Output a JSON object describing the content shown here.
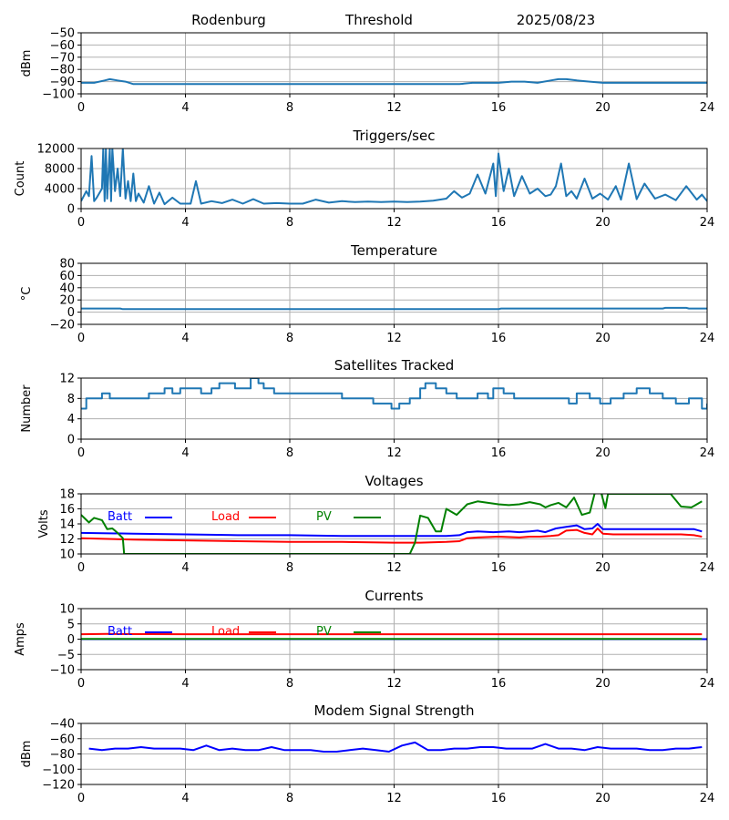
{
  "header": {
    "station": "Rodenburg",
    "mode": "Threshold",
    "date": "2025/08/23"
  },
  "chart_data": [
    {
      "type": "line",
      "title": "",
      "ylabel": "dBm",
      "xlim": [
        0,
        24
      ],
      "ylim": [
        -100,
        -50
      ],
      "x_ticks": [
        0,
        4,
        8,
        12,
        16,
        20,
        24
      ],
      "y_ticks": [
        -100,
        -90,
        -80,
        -70,
        -60,
        -50
      ],
      "series": [
        {
          "color": "#1f77b4",
          "x": [
            0,
            0.5,
            0.9,
            1.1,
            1.4,
            1.7,
            2,
            3,
            5,
            7,
            9,
            11,
            13,
            14.5,
            15,
            15.5,
            16,
            16.5,
            17,
            17.5,
            18,
            18.3,
            18.6,
            19,
            19.5,
            20,
            20.5,
            21,
            22,
            23,
            24
          ],
          "y": [
            -91,
            -91,
            -89,
            -88,
            -89,
            -90,
            -92,
            -92,
            -92,
            -92,
            -92,
            -92,
            -92,
            -92,
            -91,
            -91,
            -91,
            -90,
            -90,
            -91,
            -89,
            -88,
            -88,
            -89,
            -90,
            -91,
            -91,
            -91,
            -91,
            -91,
            -91
          ]
        }
      ]
    },
    {
      "type": "line",
      "title": "Triggers/sec",
      "ylabel": "Count",
      "xlim": [
        0,
        24
      ],
      "ylim": [
        0,
        12000
      ],
      "x_ticks": [
        0,
        4,
        8,
        12,
        16,
        20,
        24
      ],
      "y_ticks": [
        0,
        4000,
        8000,
        12000
      ],
      "series": [
        {
          "color": "#1f77b4",
          "x": [
            0,
            0.2,
            0.3,
            0.4,
            0.5,
            0.6,
            0.8,
            0.85,
            0.9,
            0.95,
            1.0,
            1.1,
            1.15,
            1.2,
            1.3,
            1.4,
            1.5,
            1.6,
            1.7,
            1.8,
            1.9,
            2.0,
            2.1,
            2.2,
            2.4,
            2.6,
            2.8,
            3.0,
            3.2,
            3.5,
            3.8,
            4.2,
            4.4,
            4.6,
            5.0,
            5.4,
            5.8,
            6.2,
            6.6,
            7.0,
            7.5,
            8.0,
            8.5,
            9.0,
            9.5,
            10.0,
            10.5,
            11.0,
            11.5,
            12.0,
            12.5,
            13.0,
            13.5,
            14.0,
            14.3,
            14.6,
            14.9,
            15.2,
            15.5,
            15.8,
            15.9,
            16.0,
            16.2,
            16.4,
            16.6,
            16.9,
            17.2,
            17.5,
            17.8,
            18.0,
            18.2,
            18.4,
            18.6,
            18.8,
            19.0,
            19.3,
            19.6,
            19.9,
            20.2,
            20.5,
            20.7,
            21.0,
            21.3,
            21.6,
            22.0,
            22.4,
            22.8,
            23.2,
            23.6,
            23.8,
            24.0
          ],
          "y": [
            1500,
            3500,
            2500,
            10500,
            1500,
            2200,
            4000,
            12000,
            1500,
            12000,
            2000,
            12000,
            1500,
            12000,
            3500,
            8000,
            2500,
            12000,
            2000,
            5500,
            1500,
            7000,
            1500,
            3000,
            1200,
            4500,
            1000,
            3200,
            900,
            2200,
            1000,
            1000,
            5500,
            1000,
            1500,
            1100,
            1800,
            1000,
            1900,
            1000,
            1100,
            1000,
            1000,
            1800,
            1200,
            1500,
            1300,
            1400,
            1300,
            1400,
            1300,
            1400,
            1600,
            2000,
            3500,
            2200,
            3000,
            6800,
            3000,
            9000,
            2500,
            11000,
            3500,
            8000,
            2500,
            6500,
            3000,
            4000,
            2500,
            2800,
            4500,
            9000,
            2500,
            3500,
            2000,
            6000,
            2000,
            3000,
            1800,
            4500,
            1800,
            9000,
            1900,
            5000,
            2000,
            2800,
            1700,
            4500,
            1800,
            2800,
            1500
          ]
        }
      ]
    },
    {
      "type": "line",
      "title": "Temperature",
      "ylabel": "°C",
      "xlim": [
        0,
        24
      ],
      "ylim": [
        -20,
        80
      ],
      "x_ticks": [
        0,
        4,
        8,
        12,
        16,
        20,
        24
      ],
      "y_ticks": [
        -20,
        0,
        20,
        40,
        60,
        80
      ],
      "series": [
        {
          "color": "#1f77b4",
          "x": [
            0,
            1.5,
            1.6,
            16,
            16.1,
            22.3,
            22.4,
            23.2,
            23.3,
            24
          ],
          "y": [
            6,
            6,
            5,
            5,
            6,
            6,
            7,
            7,
            6,
            6
          ]
        }
      ]
    },
    {
      "type": "line",
      "title": "Satellites Tracked",
      "ylabel": "Number",
      "xlim": [
        0,
        24
      ],
      "ylim": [
        0,
        12
      ],
      "x_ticks": [
        0,
        4,
        8,
        12,
        16,
        20,
        24
      ],
      "y_ticks": [
        0,
        4,
        8,
        12
      ],
      "series": [
        {
          "color": "#1f77b4",
          "step": true,
          "x": [
            0,
            0.2,
            0.8,
            1.1,
            1.6,
            2.6,
            3.2,
            3.5,
            3.8,
            4.2,
            4.6,
            5.0,
            5.3,
            5.9,
            6.5,
            6.8,
            7.0,
            7.4,
            7.8,
            8.6,
            9.2,
            10.0,
            10.3,
            11.2,
            11.9,
            12.2,
            12.6,
            13.0,
            13.2,
            13.6,
            14.0,
            14.4,
            14.8,
            15.2,
            15.6,
            15.8,
            16.2,
            16.6,
            17.0,
            17.4,
            17.8,
            18.2,
            18.7,
            19.0,
            19.5,
            19.9,
            20.3,
            20.8,
            21.3,
            21.8,
            22.3,
            22.8,
            23.3,
            23.8,
            24
          ],
          "y": [
            6,
            8,
            9,
            8,
            8,
            9,
            10,
            9,
            10,
            10,
            9,
            10,
            11,
            10,
            12,
            11,
            10,
            9,
            9,
            9,
            9,
            8,
            8,
            7,
            6,
            7,
            8,
            10,
            11,
            10,
            9,
            8,
            8,
            9,
            8,
            10,
            9,
            8,
            8,
            8,
            8,
            8,
            7,
            9,
            8,
            7,
            8,
            9,
            10,
            9,
            8,
            7,
            8,
            6,
            7
          ]
        }
      ]
    },
    {
      "type": "line",
      "title": "Voltages",
      "ylabel": "Volts",
      "xlim": [
        0,
        24
      ],
      "ylim": [
        10,
        18
      ],
      "x_ticks": [
        0,
        4,
        8,
        12,
        16,
        20,
        24
      ],
      "y_ticks": [
        10,
        12,
        14,
        16,
        18
      ],
      "legend": "inside-top",
      "series": [
        {
          "name": "Batt",
          "color": "#0000ff",
          "x": [
            0,
            2,
            4,
            6,
            8,
            10,
            12,
            13,
            14,
            14.5,
            14.8,
            15.2,
            15.8,
            16.4,
            16.8,
            17.2,
            17.5,
            17.8,
            18.2,
            18.6,
            19.0,
            19.3,
            19.6,
            19.8,
            20.0,
            20.4,
            21,
            22,
            23,
            23.5,
            23.8
          ],
          "y": [
            12.8,
            12.7,
            12.6,
            12.5,
            12.5,
            12.4,
            12.4,
            12.4,
            12.4,
            12.5,
            12.9,
            13.0,
            12.9,
            13.0,
            12.9,
            13.0,
            13.1,
            12.9,
            13.4,
            13.6,
            13.8,
            13.3,
            13.4,
            14.0,
            13.3,
            13.3,
            13.3,
            13.3,
            13.3,
            13.3,
            13.0
          ]
        },
        {
          "name": "Load",
          "color": "#ff0000",
          "x": [
            0,
            2,
            4,
            6,
            8,
            10,
            12,
            13,
            14,
            14.5,
            14.8,
            15.2,
            16,
            16.8,
            17.2,
            17.6,
            18.0,
            18.3,
            18.6,
            19.0,
            19.3,
            19.6,
            19.8,
            20.0,
            20.4,
            21,
            22,
            23,
            23.5,
            23.8
          ],
          "y": [
            12.1,
            11.9,
            11.8,
            11.7,
            11.6,
            11.6,
            11.5,
            11.5,
            11.6,
            11.7,
            12.1,
            12.2,
            12.3,
            12.2,
            12.3,
            12.3,
            12.4,
            12.5,
            13.1,
            13.2,
            12.8,
            12.6,
            13.4,
            12.7,
            12.6,
            12.6,
            12.6,
            12.6,
            12.5,
            12.3
          ]
        },
        {
          "name": "PV",
          "color": "#008000",
          "x": [
            0,
            0.3,
            0.5,
            0.8,
            1.0,
            1.2,
            1.4,
            1.6,
            1.65,
            1.8,
            12.4,
            12.6,
            12.8,
            13.0,
            13.3,
            13.6,
            13.8,
            14.0,
            14.4,
            14.8,
            15.2,
            15.6,
            16.0,
            16.4,
            16.8,
            17.2,
            17.6,
            17.8,
            18.0,
            18.3,
            18.6,
            18.9,
            19.2,
            19.5,
            19.7,
            19.9,
            20.1,
            20.2,
            22.6,
            23.0,
            23.4,
            23.8
          ],
          "y": [
            15.2,
            14.2,
            14.8,
            14.5,
            13.3,
            13.4,
            12.8,
            12.1,
            10.0,
            10.0,
            10.0,
            10.0,
            11.5,
            15.1,
            14.8,
            13.0,
            13.0,
            16.0,
            15.2,
            16.6,
            17.0,
            16.8,
            16.6,
            16.5,
            16.6,
            16.9,
            16.6,
            16.2,
            16.5,
            16.8,
            16.2,
            17.5,
            15.2,
            15.5,
            18.2,
            18.6,
            16.1,
            18.0,
            18.0,
            16.3,
            16.2,
            17.0
          ]
        }
      ]
    },
    {
      "type": "line",
      "title": "Currents",
      "ylabel": "Amps",
      "xlim": [
        0,
        24
      ],
      "ylim": [
        -10,
        10
      ],
      "x_ticks": [
        0,
        4,
        8,
        12,
        16,
        20,
        24
      ],
      "y_ticks": [
        -10,
        -5,
        0,
        5,
        10
      ],
      "legend": "inside-top",
      "series": [
        {
          "name": "Batt",
          "color": "#0000ff",
          "x": [
            0,
            24
          ],
          "y": [
            0,
            0
          ]
        },
        {
          "name": "Load",
          "color": "#ff0000",
          "x": [
            0,
            1,
            4,
            8,
            12,
            16,
            20,
            23.8
          ],
          "y": [
            1.6,
            1.7,
            1.6,
            1.6,
            1.6,
            1.6,
            1.6,
            1.6
          ]
        },
        {
          "name": "PV",
          "color": "#008000",
          "x": [
            0,
            23.8
          ],
          "y": [
            0.1,
            0.1
          ]
        }
      ]
    },
    {
      "type": "line",
      "title": "Modem Signal Strength",
      "ylabel": "dBm",
      "xlim": [
        0,
        24
      ],
      "ylim": [
        -120,
        -40
      ],
      "x_ticks": [
        0,
        4,
        8,
        12,
        16,
        20,
        24
      ],
      "y_ticks": [
        -120,
        -100,
        -80,
        -60,
        -40
      ],
      "series": [
        {
          "color": "#0000ff",
          "x": [
            0.3,
            0.8,
            1.3,
            1.8,
            2.3,
            2.8,
            3.3,
            3.8,
            4.3,
            4.8,
            5.3,
            5.8,
            6.3,
            6.8,
            7.3,
            7.8,
            8.3,
            8.8,
            9.3,
            9.8,
            10.3,
            10.8,
            11.3,
            11.8,
            12.3,
            12.8,
            13.3,
            13.8,
            14.3,
            14.8,
            15.3,
            15.8,
            16.3,
            16.8,
            17.3,
            17.8,
            18.3,
            18.8,
            19.3,
            19.8,
            20.3,
            20.8,
            21.3,
            21.8,
            22.3,
            22.8,
            23.3,
            23.8
          ],
          "y": [
            -73,
            -75,
            -73,
            -73,
            -71,
            -73,
            -73,
            -73,
            -75,
            -69,
            -75,
            -73,
            -75,
            -75,
            -71,
            -75,
            -75,
            -75,
            -77,
            -77,
            -75,
            -73,
            -75,
            -77,
            -69,
            -65,
            -75,
            -75,
            -73,
            -73,
            -71,
            -71,
            -73,
            -73,
            -73,
            -67,
            -73,
            -73,
            -75,
            -71,
            -73,
            -73,
            -73,
            -75,
            -75,
            -73,
            -73,
            -71
          ]
        }
      ]
    }
  ]
}
